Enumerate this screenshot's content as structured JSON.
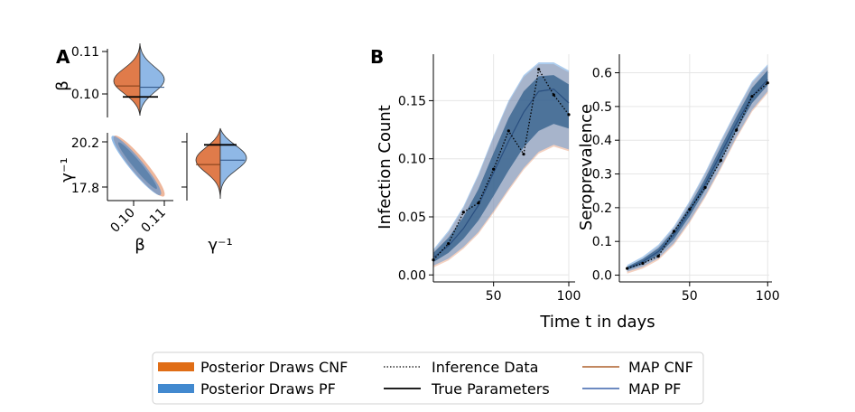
{
  "panels": {
    "a": "A",
    "b": "B"
  },
  "colors": {
    "cnf": "#e07b4a",
    "pf": "#4a90d9",
    "cnf_legend": "#e06d16",
    "pf_legend": "#4289cf",
    "band_dark": "#2f5d8a",
    "map_cnf": "#b9774a",
    "map_pf": "#5779b8"
  },
  "legend": {
    "posterior_cnf": "Posterior Draws CNF",
    "posterior_pf": "Posterior Draws PF",
    "inference_data": "Inference Data",
    "true_params": "True Parameters",
    "map_cnf": "MAP CNF",
    "map_pf": "MAP PF"
  },
  "chart_data": [
    {
      "type": "violin",
      "panel": "A",
      "name": "beta",
      "ylabel": "β",
      "yticks": [
        "0.11",
        "0.10"
      ],
      "ytick_values": [
        0.11,
        0.1
      ],
      "ylim": [
        0.0953,
        0.111
      ],
      "true_value": 0.1,
      "map_cnf": 0.1025,
      "map_pf": 0.1022
    },
    {
      "type": "scatter",
      "panel": "A",
      "name": "joint",
      "xlabel": "β",
      "ylabel": "γ⁻¹",
      "xticks": [
        "0.10",
        "0.11"
      ],
      "xtick_values": [
        0.1,
        0.11
      ],
      "yticks": [
        "20.2",
        "17.8"
      ],
      "ytick_values": [
        20.2,
        17.8
      ],
      "xlim": [
        0.0935,
        0.111
      ],
      "ylim": [
        17.45,
        20.55
      ],
      "points": [
        [
          0.0955,
          20.3
        ],
        [
          0.0985,
          19.6
        ],
        [
          0.1005,
          19.1
        ],
        [
          0.103,
          18.55
        ],
        [
          0.1055,
          18.1
        ],
        [
          0.1075,
          17.8
        ]
      ]
    },
    {
      "type": "violin",
      "panel": "A",
      "name": "gamma_inv",
      "xlabel": "γ⁻¹",
      "ylim": [
        17.45,
        20.55
      ],
      "true_value": 20.0,
      "map_cnf": 19.1,
      "map_pf": 19.3
    },
    {
      "type": "line",
      "panel": "B",
      "name": "infection",
      "ylabel": "Infection Count",
      "xticks": [
        50,
        100
      ],
      "yticks": [
        0.0,
        0.05,
        0.1,
        0.15
      ],
      "ytick_labels": [
        "0.00",
        "0.05",
        "0.10",
        "0.15"
      ],
      "xlim": [
        10,
        100
      ],
      "ylim": [
        -0.006,
        0.19
      ],
      "x": [
        10,
        20,
        30,
        40,
        50,
        60,
        70,
        80,
        90,
        100
      ],
      "inference_data": [
        0.013,
        0.027,
        0.054,
        0.062,
        0.091,
        0.124,
        0.104,
        0.177,
        0.155,
        0.138
      ],
      "map": [
        0.015,
        0.025,
        0.04,
        0.06,
        0.088,
        0.115,
        0.14,
        0.158,
        0.16,
        0.148
      ],
      "band_outer_lo": [
        0.008,
        0.014,
        0.024,
        0.037,
        0.055,
        0.074,
        0.092,
        0.106,
        0.112,
        0.108
      ],
      "band_outer_hi": [
        0.022,
        0.038,
        0.059,
        0.087,
        0.12,
        0.15,
        0.172,
        0.183,
        0.183,
        0.176
      ],
      "band_inner_lo": [
        0.011,
        0.019,
        0.031,
        0.047,
        0.068,
        0.09,
        0.11,
        0.124,
        0.13,
        0.126
      ],
      "band_inner_hi": [
        0.019,
        0.032,
        0.05,
        0.074,
        0.105,
        0.135,
        0.158,
        0.171,
        0.172,
        0.164
      ]
    },
    {
      "type": "line",
      "panel": "B",
      "name": "seroprevalence",
      "ylabel": "Seroprevalence",
      "xlabel": "Time t in days",
      "xticks": [
        50,
        100
      ],
      "yticks": [
        0.0,
        0.1,
        0.2,
        0.3,
        0.4,
        0.5,
        0.6
      ],
      "ytick_labels": [
        "0.0",
        "0.1",
        "0.2",
        "0.3",
        "0.4",
        "0.5",
        "0.6"
      ],
      "xlim": [
        5,
        101
      ],
      "ylim": [
        -0.02,
        0.655
      ],
      "x": [
        10,
        20,
        30,
        40,
        50,
        60,
        70,
        80,
        90,
        100
      ],
      "inference_data": [
        0.02,
        0.035,
        0.056,
        0.13,
        0.195,
        0.26,
        0.34,
        0.43,
        0.53,
        0.57
      ],
      "map": [
        0.02,
        0.04,
        0.07,
        0.12,
        0.19,
        0.27,
        0.36,
        0.45,
        0.53,
        0.58
      ],
      "band_outer_lo": [
        0.01,
        0.025,
        0.05,
        0.095,
        0.16,
        0.235,
        0.32,
        0.41,
        0.49,
        0.545
      ],
      "band_outer_hi": [
        0.03,
        0.055,
        0.09,
        0.145,
        0.22,
        0.305,
        0.4,
        0.49,
        0.575,
        0.625
      ],
      "band_inner_lo": [
        0.015,
        0.032,
        0.06,
        0.107,
        0.175,
        0.253,
        0.34,
        0.43,
        0.51,
        0.563
      ],
      "band_inner_hi": [
        0.025,
        0.048,
        0.08,
        0.133,
        0.205,
        0.287,
        0.38,
        0.47,
        0.555,
        0.607
      ]
    }
  ]
}
